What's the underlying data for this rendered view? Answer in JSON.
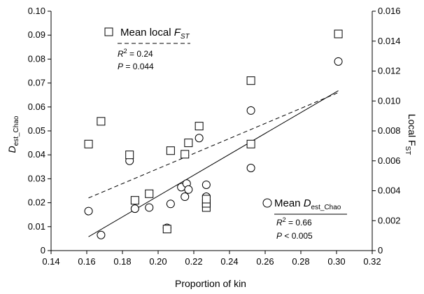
{
  "chart_data": {
    "type": "scatter",
    "xlabel": "Proportion of kin",
    "ylabel_left": {
      "main": "D",
      "sub": "est_Chao"
    },
    "ylabel_right": {
      "main": "Local F",
      "sub": "ST"
    },
    "xlim": [
      0.14,
      0.32
    ],
    "ylim_left": [
      0,
      0.1
    ],
    "ylim_right": [
      0,
      0.016
    ],
    "x_ticks": [
      "0.14",
      "0.16",
      "0.18",
      "0.20",
      "0.22",
      "0.24",
      "0.26",
      "0.28",
      "0.30",
      "0.32"
    ],
    "y_left_ticks": [
      "0",
      "0.01",
      "0.02",
      "0.03",
      "0.04",
      "0.05",
      "0.06",
      "0.07",
      "0.08",
      "0.09",
      "0.10"
    ],
    "y_right_ticks": [
      "0",
      "0.002",
      "0.004",
      "0.006",
      "0.008",
      "0.010",
      "0.012",
      "0.014",
      "0.016"
    ],
    "series": [
      {
        "name": "Mean D est_Chao",
        "axis": "left",
        "marker": "circle",
        "fit": "solid",
        "fit_line": {
          "x": [
            0.161,
            0.301
          ],
          "y": [
            0.0058,
            0.0668
          ]
        },
        "x": [
          0.161,
          0.168,
          0.184,
          0.187,
          0.195,
          0.205,
          0.207,
          0.213,
          0.215,
          0.216,
          0.217,
          0.223,
          0.227,
          0.227,
          0.227,
          0.252,
          0.252,
          0.301
        ],
        "y": [
          0.0165,
          0.0065,
          0.0375,
          0.0175,
          0.018,
          0.0095,
          0.0195,
          0.0265,
          0.0225,
          0.028,
          0.0255,
          0.047,
          0.0275,
          0.0225,
          0.0195,
          0.0345,
          0.0585,
          0.079
        ]
      },
      {
        "name": "Mean local F ST",
        "axis": "right",
        "marker": "square",
        "fit": "dashed",
        "fit_line": {
          "x": [
            0.161,
            0.301
          ],
          "y": [
            0.00352,
            0.01056
          ]
        },
        "x": [
          0.161,
          0.168,
          0.184,
          0.187,
          0.195,
          0.205,
          0.207,
          0.215,
          0.217,
          0.223,
          0.227,
          0.227,
          0.227,
          0.252,
          0.252,
          0.301
        ],
        "y": [
          0.00712,
          0.00864,
          0.0064,
          0.00336,
          0.0038,
          0.00144,
          0.00668,
          0.00644,
          0.0072,
          0.00832,
          0.00288,
          0.00316,
          0.00344,
          0.00712,
          0.01136,
          0.01448
        ]
      }
    ],
    "legend_fst": {
      "label_main": "Mean local F",
      "label_sub": "ST",
      "r2_label": "R",
      "r2_sup": "2",
      "r2_value": " = 0.24",
      "p_label": "P",
      "p_value": " = 0.044"
    },
    "legend_dest": {
      "label_main": "Mean  D",
      "label_sub": "est_Chao",
      "r2_label": "R",
      "r2_sup": "2",
      "r2_value": " = 0.66",
      "p_label": "P",
      "p_value": " < 0.005"
    }
  }
}
